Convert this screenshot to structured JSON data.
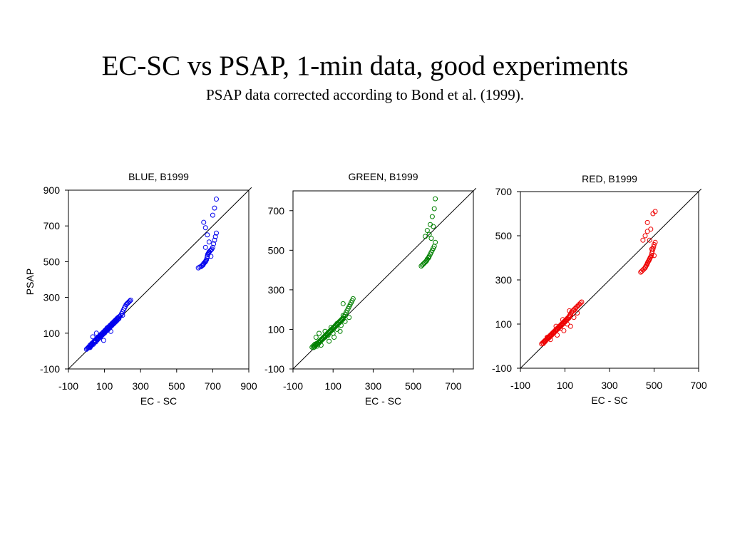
{
  "title": "EC-SC vs PSAP, 1-min data, good experiments",
  "subtitle": "PSAP data corrected according to Bond et al. (1999).",
  "colors": {
    "blue": "#0000ee",
    "green": "#008000",
    "red": "#ee0000",
    "axes": "#000000"
  },
  "chart_data": [
    {
      "type": "scatter",
      "title": "BLUE, B1999",
      "xlabel": "EC - SC",
      "ylabel": "PSAP",
      "color": "#0000ee",
      "xlim": [
        -100,
        900
      ],
      "ylim": [
        -100,
        900
      ],
      "xticks": [
        -100,
        100,
        300,
        500,
        700,
        900
      ],
      "yticks": [
        -100,
        100,
        300,
        500,
        700,
        900
      ],
      "identity_line": true,
      "grid": false,
      "x": [
        0,
        5,
        10,
        12,
        15,
        18,
        20,
        22,
        25,
        28,
        30,
        32,
        35,
        38,
        40,
        42,
        45,
        48,
        50,
        52,
        55,
        58,
        60,
        62,
        65,
        68,
        70,
        72,
        75,
        78,
        80,
        82,
        85,
        88,
        90,
        92,
        95,
        98,
        100,
        102,
        105,
        108,
        110,
        112,
        115,
        118,
        120,
        122,
        125,
        128,
        130,
        132,
        135,
        138,
        140,
        142,
        145,
        148,
        150,
        152,
        155,
        158,
        160,
        162,
        165,
        168,
        170,
        172,
        175,
        178,
        180,
        185,
        190,
        195,
        200,
        205,
        210,
        215,
        220,
        225,
        230,
        235,
        240,
        245,
        35,
        55,
        75,
        95,
        115,
        135,
        20,
        40,
        60,
        80,
        100,
        120,
        140,
        160,
        180,
        200,
        620,
        628,
        635,
        640,
        645,
        648,
        650,
        655,
        660,
        662,
        665,
        668,
        670,
        672,
        675,
        678,
        680,
        685,
        690,
        695,
        700,
        705,
        710,
        715,
        720,
        650,
        660,
        670,
        680,
        700,
        710,
        660,
        690,
        720
      ],
      "y": [
        10,
        15,
        18,
        22,
        20,
        30,
        25,
        35,
        28,
        40,
        35,
        45,
        42,
        38,
        50,
        55,
        48,
        60,
        58,
        52,
        65,
        70,
        62,
        75,
        68,
        80,
        72,
        85,
        78,
        90,
        82,
        95,
        88,
        100,
        92,
        105,
        98,
        110,
        102,
        115,
        108,
        120,
        112,
        125,
        118,
        130,
        122,
        135,
        128,
        140,
        132,
        145,
        138,
        150,
        142,
        155,
        148,
        160,
        152,
        165,
        158,
        170,
        162,
        175,
        168,
        180,
        172,
        185,
        178,
        190,
        182,
        195,
        200,
        210,
        220,
        230,
        240,
        250,
        260,
        265,
        270,
        275,
        280,
        285,
        80,
        100,
        90,
        60,
        130,
        110,
        20,
        50,
        70,
        85,
        100,
        120,
        150,
        170,
        190,
        200,
        465,
        470,
        472,
        478,
        480,
        485,
        490,
        495,
        500,
        505,
        510,
        520,
        530,
        540,
        545,
        550,
        555,
        560,
        565,
        570,
        580,
        600,
        620,
        640,
        660,
        720,
        690,
        650,
        610,
        760,
        800,
        580,
        530,
        850
      ]
    },
    {
      "type": "scatter",
      "title": "GREEN, B1999",
      "xlabel": "EC - SC",
      "ylabel": "",
      "color": "#008000",
      "xlim": [
        -100,
        800
      ],
      "ylim": [
        -100,
        800
      ],
      "xticks": [
        -100,
        100,
        300,
        500,
        700
      ],
      "yticks": [
        -100,
        100,
        300,
        500,
        700
      ],
      "identity_line": true,
      "grid": false,
      "x": [
        -5,
        0,
        3,
        5,
        8,
        10,
        12,
        15,
        18,
        20,
        22,
        25,
        28,
        30,
        32,
        35,
        38,
        40,
        42,
        45,
        48,
        50,
        52,
        55,
        58,
        60,
        62,
        65,
        68,
        70,
        72,
        75,
        78,
        80,
        82,
        85,
        88,
        90,
        92,
        95,
        98,
        100,
        102,
        105,
        108,
        110,
        112,
        115,
        118,
        120,
        122,
        125,
        128,
        130,
        132,
        135,
        138,
        140,
        142,
        145,
        148,
        150,
        155,
        160,
        165,
        170,
        175,
        180,
        185,
        190,
        195,
        200,
        15,
        30,
        45,
        60,
        75,
        90,
        105,
        120,
        135,
        150,
        20,
        40,
        60,
        80,
        100,
        120,
        140,
        160,
        180,
        150,
        540,
        545,
        550,
        555,
        560,
        565,
        568,
        570,
        575,
        578,
        580,
        585,
        590,
        595,
        600,
        605,
        610,
        560,
        570,
        585,
        595,
        605,
        580,
        590,
        600,
        610
      ],
      "y": [
        10,
        15,
        8,
        20,
        12,
        25,
        18,
        22,
        28,
        15,
        30,
        25,
        35,
        32,
        40,
        38,
        45,
        42,
        50,
        48,
        55,
        52,
        60,
        58,
        65,
        62,
        70,
        68,
        75,
        72,
        80,
        78,
        85,
        82,
        90,
        88,
        95,
        92,
        100,
        98,
        105,
        102,
        110,
        108,
        115,
        112,
        120,
        118,
        125,
        122,
        130,
        128,
        135,
        132,
        140,
        138,
        145,
        142,
        150,
        148,
        155,
        152,
        165,
        175,
        185,
        195,
        205,
        215,
        225,
        235,
        245,
        255,
        60,
        80,
        50,
        90,
        70,
        110,
        60,
        130,
        90,
        170,
        30,
        20,
        60,
        40,
        80,
        100,
        120,
        140,
        160,
        230,
        420,
        425,
        430,
        435,
        440,
        445,
        450,
        455,
        460,
        465,
        470,
        480,
        490,
        500,
        510,
        520,
        540,
        570,
        600,
        630,
        670,
        710,
        580,
        560,
        620,
        760
      ]
    },
    {
      "type": "scatter",
      "title": "RED, B1999",
      "xlabel": "EC - SC",
      "ylabel": "",
      "color": "#ee0000",
      "xlim": [
        -100,
        700
      ],
      "ylim": [
        -100,
        700
      ],
      "xticks": [
        -100,
        100,
        300,
        500,
        700
      ],
      "yticks": [
        -100,
        100,
        300,
        500,
        700
      ],
      "identity_line": true,
      "grid": false,
      "x": [
        -5,
        0,
        3,
        5,
        8,
        10,
        12,
        15,
        18,
        20,
        22,
        25,
        28,
        30,
        32,
        35,
        38,
        40,
        42,
        45,
        48,
        50,
        52,
        55,
        58,
        60,
        62,
        65,
        68,
        70,
        72,
        75,
        78,
        80,
        82,
        85,
        88,
        90,
        92,
        95,
        98,
        100,
        102,
        105,
        108,
        110,
        112,
        115,
        118,
        120,
        122,
        125,
        128,
        130,
        135,
        140,
        145,
        150,
        155,
        160,
        165,
        170,
        175,
        20,
        35,
        50,
        65,
        80,
        95,
        110,
        125,
        140,
        155,
        60,
        90,
        120,
        440,
        445,
        450,
        455,
        460,
        462,
        465,
        468,
        470,
        472,
        475,
        478,
        480,
        482,
        485,
        488,
        490,
        492,
        495,
        498,
        500,
        505,
        450,
        460,
        470,
        480,
        490,
        500,
        470,
        485,
        495,
        505
      ],
      "y": [
        10,
        15,
        12,
        20,
        18,
        25,
        22,
        28,
        30,
        35,
        32,
        40,
        38,
        45,
        42,
        50,
        48,
        55,
        52,
        60,
        58,
        65,
        62,
        70,
        68,
        75,
        72,
        80,
        78,
        85,
        82,
        90,
        88,
        95,
        92,
        100,
        98,
        105,
        102,
        110,
        108,
        115,
        112,
        120,
        118,
        125,
        122,
        130,
        128,
        135,
        140,
        145,
        150,
        155,
        160,
        165,
        170,
        175,
        180,
        185,
        190,
        195,
        200,
        40,
        30,
        60,
        50,
        80,
        70,
        100,
        90,
        130,
        150,
        90,
        120,
        160,
        335,
        340,
        345,
        350,
        355,
        360,
        365,
        370,
        375,
        380,
        385,
        390,
        395,
        400,
        405,
        410,
        420,
        430,
        440,
        450,
        460,
        470,
        480,
        500,
        520,
        480,
        440,
        410,
        560,
        530,
        600,
        610
      ]
    }
  ]
}
